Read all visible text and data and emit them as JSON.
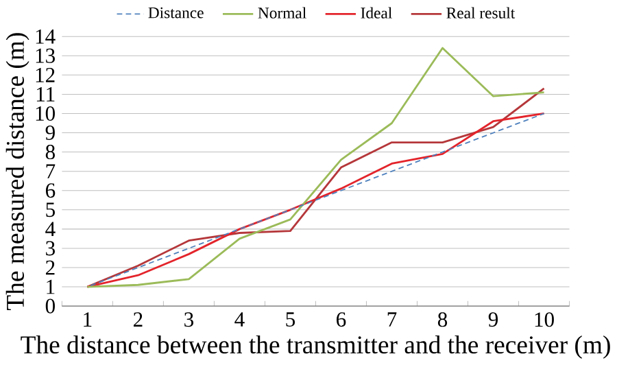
{
  "chart_data": {
    "type": "line",
    "xlabel": "The distance between the transmitter and the receiver (m)",
    "ylabel": "The measured distance (m)",
    "categories": [
      "1",
      "2",
      "3",
      "4",
      "5",
      "6",
      "7",
      "8",
      "9",
      "10"
    ],
    "series": [
      {
        "name": "Distance",
        "color": "#4f81bd",
        "line_style": "dashed",
        "values": [
          1,
          2,
          3,
          4,
          5,
          6,
          7,
          8,
          9,
          10
        ]
      },
      {
        "name": "Normal",
        "color": "#9bbb59",
        "values": [
          1,
          1.1,
          1.4,
          3.5,
          4.5,
          7.6,
          9.5,
          13.4,
          10.9,
          11.1
        ]
      },
      {
        "name": "Ideal",
        "color": "#e3242b",
        "values": [
          1,
          1.6,
          2.7,
          4.0,
          5.0,
          6.1,
          7.4,
          7.9,
          9.6,
          10.0
        ]
      },
      {
        "name": "Real result",
        "color": "#b5373a",
        "values": [
          1,
          2.1,
          3.4,
          3.8,
          3.9,
          7.2,
          8.5,
          8.5,
          9.3,
          11.3
        ]
      }
    ],
    "ylim": [
      0,
      14
    ],
    "yticks": [
      0,
      1,
      2,
      3,
      4,
      5,
      6,
      7,
      8,
      9,
      10,
      11,
      12,
      13,
      14
    ],
    "grid": "y",
    "legend": "top",
    "marker": "none",
    "line_style": "solid"
  }
}
